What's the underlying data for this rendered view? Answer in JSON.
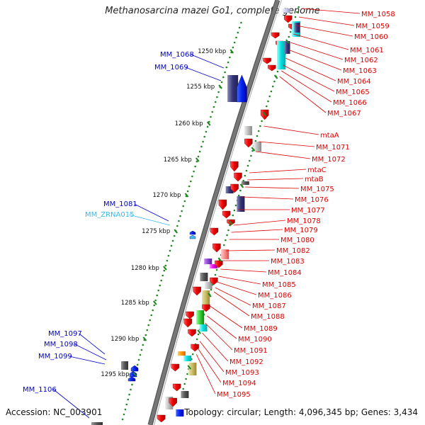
{
  "title": "Methanosarcina mazei Go1, complete genome",
  "accession": "Accession: NC_003901",
  "topology": "Topology: circular; Length: 4,096,345 bp; Genes: 3,434",
  "colors": {
    "backbone": "#777777",
    "forward_label": "#dd0000",
    "reverse_label": "#0000cc",
    "rna_label": "#33bbee",
    "ruler_dots": "#228822"
  },
  "ruler_ticks": [
    {
      "label": "1250 kbp"
    },
    {
      "label": "1255 kbp"
    },
    {
      "label": "1260 kbp"
    },
    {
      "label": "1265 kbp"
    },
    {
      "label": "1270 kbp"
    },
    {
      "label": "1275 kbp"
    },
    {
      "label": "1280 kbp"
    },
    {
      "label": "1285 kbp"
    },
    {
      "label": "1290 kbp"
    },
    {
      "label": "1295 kbp"
    }
  ],
  "right_labels": [
    {
      "label": "MM_1058"
    },
    {
      "label": "MM_1059"
    },
    {
      "label": "MM_1060"
    },
    {
      "label": "MM_1061"
    },
    {
      "label": "MM_1062"
    },
    {
      "label": "MM_1063"
    },
    {
      "label": "MM_1064"
    },
    {
      "label": "MM_1065"
    },
    {
      "label": "MM_1066"
    },
    {
      "label": "MM_1067"
    },
    {
      "label": "mtaA"
    },
    {
      "label": "MM_1071"
    },
    {
      "label": "MM_1072"
    },
    {
      "label": "mtaC"
    },
    {
      "label": "mtaB"
    },
    {
      "label": "MM_1075"
    },
    {
      "label": "MM_1076"
    },
    {
      "label": "MM_1077"
    },
    {
      "label": "MM_1078"
    },
    {
      "label": "MM_1079"
    },
    {
      "label": "MM_1080"
    },
    {
      "label": "MM_1082"
    },
    {
      "label": "MM_1083"
    },
    {
      "label": "MM_1084"
    },
    {
      "label": "MM_1085"
    },
    {
      "label": "MM_1086"
    },
    {
      "label": "MM_1087"
    },
    {
      "label": "MM_1088"
    },
    {
      "label": "MM_1089"
    },
    {
      "label": "MM_1090"
    },
    {
      "label": "MM_1091"
    },
    {
      "label": "MM_1092"
    },
    {
      "label": "MM_1093"
    },
    {
      "label": "MM_1094"
    },
    {
      "label": "MM_1095"
    }
  ],
  "left_labels": [
    {
      "label": "MM_1068",
      "kind": "reverse"
    },
    {
      "label": "MM_1069",
      "kind": "reverse"
    },
    {
      "label": "MM_1081",
      "kind": "reverse"
    },
    {
      "label": "MM_ZRNA015",
      "kind": "rna"
    },
    {
      "label": "MM_1097",
      "kind": "reverse"
    },
    {
      "label": "MM_1098",
      "kind": "reverse"
    },
    {
      "label": "MM_1099",
      "kind": "reverse"
    },
    {
      "label": "MM_1106",
      "kind": "reverse"
    }
  ]
}
